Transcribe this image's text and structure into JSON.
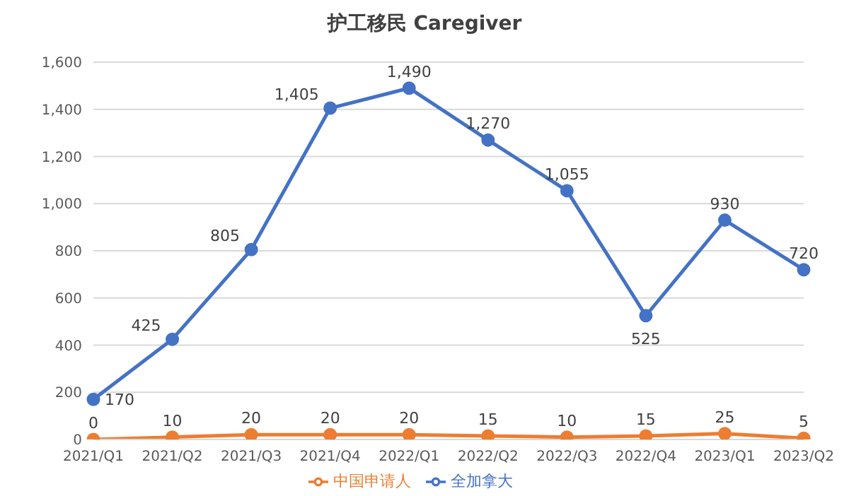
{
  "chart_data": {
    "type": "line",
    "title": "护工移民 Caregiver",
    "categories": [
      "2021/Q1",
      "2021/Q2",
      "2021/Q3",
      "2021/Q4",
      "2022/Q1",
      "2022/Q2",
      "2022/Q3",
      "2022/Q4",
      "2023/Q1",
      "2023/Q2"
    ],
    "series": [
      {
        "name": "全加拿大",
        "color": "#4472c4",
        "values": [
          170,
          425,
          805,
          1405,
          1490,
          1270,
          1055,
          525,
          930,
          720
        ],
        "value_labels": [
          "170",
          "425",
          "805",
          "1,405",
          "1,490",
          "1,270",
          "1,055",
          "525",
          "930",
          "720"
        ]
      },
      {
        "name": "中国申请人",
        "color": "#ed7d31",
        "values": [
          0,
          10,
          20,
          20,
          20,
          15,
          10,
          15,
          25,
          5
        ],
        "value_labels": [
          "0",
          "10",
          "20",
          "20",
          "20",
          "15",
          "10",
          "15",
          "25",
          "5"
        ]
      }
    ],
    "ylim": [
      0,
      1600
    ],
    "yticks": [
      0,
      200,
      400,
      600,
      800,
      {
        "value": 1000,
        "label": "1,000"
      },
      {
        "value": 1200,
        "label": "1,200"
      },
      {
        "value": 1400,
        "label": "1,400"
      },
      {
        "value": 1600,
        "label": "1,600"
      }
    ],
    "grid": "y",
    "legend": "bottom",
    "marker": "circle",
    "line_style": "solid"
  }
}
